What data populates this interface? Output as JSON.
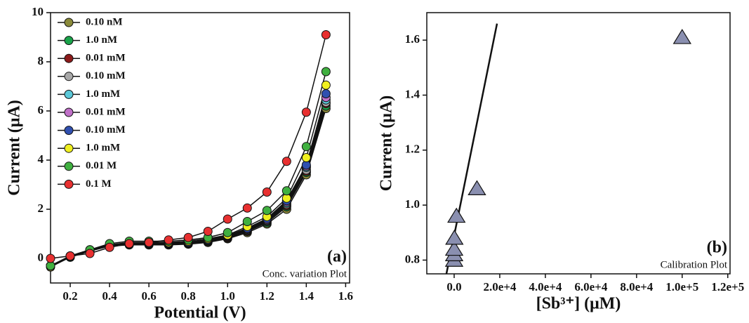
{
  "chart_data": [
    {
      "type": "line",
      "xlabel": "Potential (V)",
      "ylabel": "Current (μA)",
      "panel_label": "(a)",
      "note": "Conc. variation Plot",
      "x": [
        0.1,
        0.2,
        0.3,
        0.4,
        0.5,
        0.6,
        0.7,
        0.8,
        0.9,
        1.0,
        1.1,
        1.2,
        1.3,
        1.4,
        1.5
      ],
      "xlim": [
        0.1,
        1.62
      ],
      "ylim": [
        -1,
        10
      ],
      "xticks": [
        0.2,
        0.4,
        0.6,
        0.8,
        {
          "value": 1,
          "label": "1.0"
        },
        1.2,
        1.4,
        1.6
      ],
      "yticks": [
        0,
        2,
        4,
        6,
        8,
        10
      ],
      "series": [
        {
          "name": "0.10 nM",
          "color": "#8a8a3a",
          "values": [
            -0.35,
            0.05,
            0.3,
            0.5,
            0.55,
            0.55,
            0.55,
            0.58,
            0.65,
            0.8,
            1.05,
            1.4,
            2.0,
            3.4,
            6.1
          ]
        },
        {
          "name": "1.0 nM",
          "color": "#1aa34a",
          "values": [
            -0.3,
            0.05,
            0.3,
            0.52,
            0.57,
            0.57,
            0.57,
            0.6,
            0.68,
            0.83,
            1.1,
            1.45,
            2.1,
            3.5,
            6.2
          ]
        },
        {
          "name": "0.01 mM",
          "color": "#8b1a1a",
          "values": [
            -0.3,
            0.08,
            0.32,
            0.53,
            0.58,
            0.58,
            0.58,
            0.62,
            0.7,
            0.85,
            1.12,
            1.5,
            2.15,
            3.55,
            6.3
          ]
        },
        {
          "name": "0.10 mM",
          "color": "#a8a8a8",
          "values": [
            -0.3,
            0.08,
            0.32,
            0.53,
            0.6,
            0.6,
            0.6,
            0.63,
            0.72,
            0.88,
            1.15,
            1.52,
            2.2,
            3.6,
            6.35
          ]
        },
        {
          "name": "1.0 mM",
          "color": "#5bc8d8",
          "values": [
            -0.3,
            0.08,
            0.33,
            0.54,
            0.6,
            0.6,
            0.6,
            0.64,
            0.73,
            0.9,
            1.18,
            1.55,
            2.25,
            3.7,
            6.45
          ]
        },
        {
          "name": "0.01 mM",
          "color": "#c070c8",
          "values": [
            -0.3,
            0.09,
            0.33,
            0.55,
            0.61,
            0.61,
            0.61,
            0.65,
            0.74,
            0.91,
            1.2,
            1.58,
            2.3,
            3.75,
            6.55
          ]
        },
        {
          "name": "0.10 mM",
          "color": "#3050b0",
          "values": [
            -0.3,
            0.09,
            0.34,
            0.55,
            0.62,
            0.62,
            0.62,
            0.66,
            0.76,
            0.93,
            1.23,
            1.62,
            2.35,
            3.8,
            6.7
          ]
        },
        {
          "name": "1.0 mM",
          "color": "#f0f020",
          "values": [
            -0.3,
            0.1,
            0.35,
            0.55,
            0.65,
            0.65,
            0.65,
            0.7,
            0.8,
            0.95,
            1.3,
            1.7,
            2.45,
            4.1,
            7.05
          ]
        },
        {
          "name": "0.01 M",
          "color": "#40b040",
          "values": [
            -0.3,
            0.1,
            0.35,
            0.6,
            0.7,
            0.7,
            0.7,
            0.75,
            0.85,
            1.05,
            1.5,
            1.95,
            2.75,
            4.55,
            7.6
          ]
        },
        {
          "name": "0.1 M",
          "color": "#e83030",
          "values": [
            0.0,
            0.1,
            0.2,
            0.45,
            0.6,
            0.65,
            0.75,
            0.85,
            1.1,
            1.6,
            2.05,
            2.7,
            3.95,
            5.95,
            9.1
          ]
        }
      ]
    },
    {
      "type": "scatter",
      "xlabel": "[Sb³⁺] (μM)",
      "ylabel": "Current (μA)",
      "panel_label": "(b)",
      "note": "Calibration Plot",
      "xlim": [
        -12000,
        121000
      ],
      "ylim": [
        0.75,
        1.7
      ],
      "xticks": [
        {
          "value": 0,
          "label": "0.0"
        },
        {
          "value": 20000,
          "label": "2.0e+4"
        },
        {
          "value": 40000,
          "label": "4.0e+4"
        },
        {
          "value": 60000,
          "label": "6.0e+4"
        },
        {
          "value": 80000,
          "label": "8.0e+4"
        },
        {
          "value": 100000,
          "label": "1.0e+5"
        },
        {
          "value": 120000,
          "label": "1.2e+5"
        }
      ],
      "yticks": [
        0.8,
        {
          "value": 1,
          "label": "1.0"
        },
        1.2,
        1.4,
        1.6
      ],
      "color": "#8a8fb0",
      "x": [
        0.0001,
        0.001,
        10,
        100,
        1000,
        10000,
        100000
      ],
      "values": [
        0.8,
        0.82,
        0.84,
        0.88,
        0.96,
        1.06,
        1.61
      ],
      "fit_line": {
        "x": [
          -3400,
          18800
        ],
        "y": [
          0.75,
          1.66
        ]
      }
    }
  ]
}
